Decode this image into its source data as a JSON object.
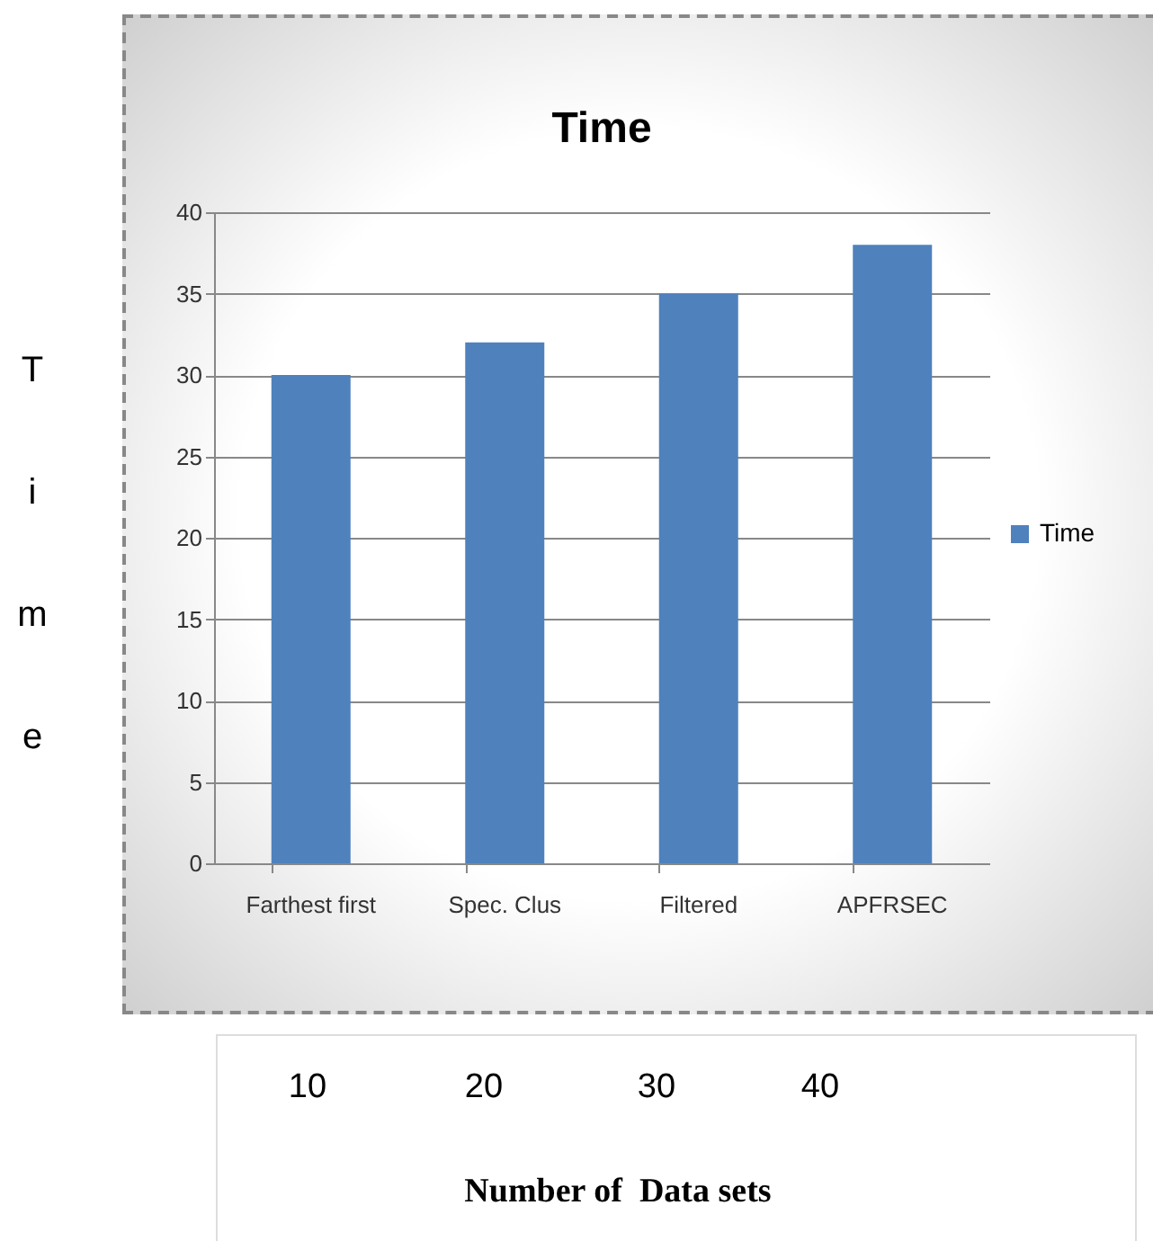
{
  "chart_data": {
    "type": "bar",
    "title": "Time",
    "ylabel": "Time",
    "categories": [
      "Farthest first",
      "Spec. Clus",
      "Filtered",
      "APFRSEC"
    ],
    "series": [
      {
        "name": "Time",
        "color": "#4f81bd",
        "values": [
          30,
          32,
          35,
          38
        ]
      }
    ],
    "ylim": [
      0,
      40
    ],
    "yticks": [
      0,
      5,
      10,
      15,
      20,
      25,
      30,
      35,
      40
    ],
    "grid": "y",
    "legend": "right",
    "annotations": [
      "10",
      "20",
      "30",
      "40",
      "Number of  Data sets"
    ]
  }
}
